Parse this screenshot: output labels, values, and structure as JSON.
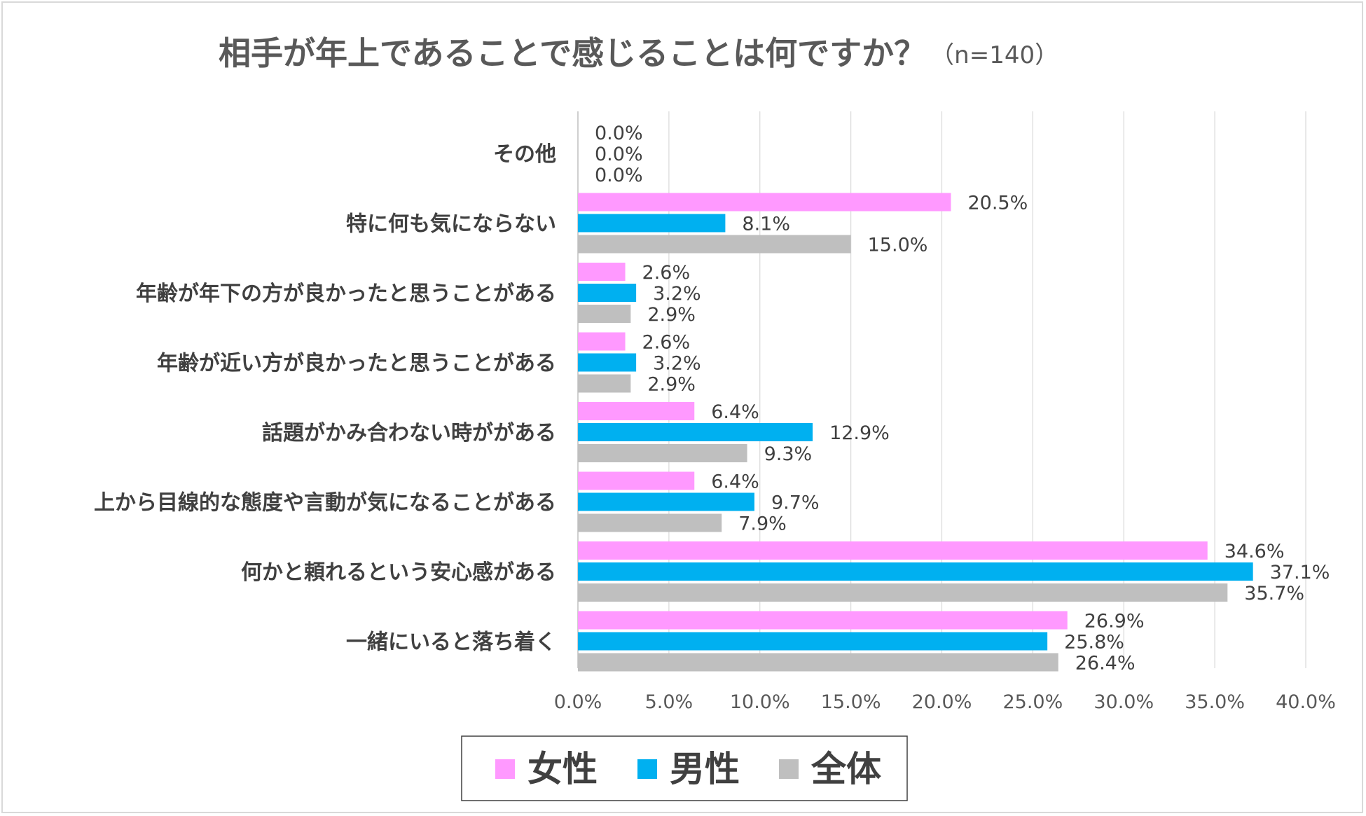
{
  "chart_data": {
    "type": "bar",
    "orientation": "horizontal",
    "title": "相手が年上であることで感じることは何ですか？",
    "subtitle": "（n=140）",
    "categories": [
      "その他",
      "特に何も気にならない",
      "年齢が年下の方が良かったと思うことがある",
      "年齢が近い方が良かったと思うことがある",
      "話題がかみ合わない時ががある",
      "上から目線的な態度や言動が気になることがある",
      "何かと頼れるという安心感がある",
      "一緒にいると落ち着く"
    ],
    "series": [
      {
        "name": "女性",
        "color": "#ff99ff",
        "values": [
          0.0,
          20.5,
          2.6,
          2.6,
          6.4,
          6.4,
          34.6,
          26.9
        ]
      },
      {
        "name": "男性",
        "color": "#00b0f0",
        "values": [
          0.0,
          8.1,
          3.2,
          3.2,
          12.9,
          9.7,
          37.1,
          25.8
        ]
      },
      {
        "name": "全体",
        "color": "#bfbfbf",
        "values": [
          0.0,
          15.0,
          2.9,
          2.9,
          9.3,
          7.9,
          35.7,
          26.4
        ]
      }
    ],
    "xlim": [
      0,
      40
    ],
    "xticks": [
      0,
      5,
      10,
      15,
      20,
      25,
      30,
      35,
      40
    ],
    "tick_labels": [
      "0.0%",
      "5.0%",
      "10.0%",
      "15.0%",
      "20.0%",
      "25.0%",
      "30.0%",
      "35.0%",
      "40.0%"
    ],
    "data_labels": [
      [
        "0.0%",
        "20.5%",
        "2.6%",
        "2.6%",
        "6.4%",
        "6.4%",
        "34.6%",
        "26.9%"
      ],
      [
        "0.0%",
        "8.1%",
        "3.2%",
        "3.2%",
        "12.9%",
        "9.7%",
        "37.1%",
        "25.8%"
      ],
      [
        "0.0%",
        "15.0%",
        "2.9%",
        "2.9%",
        "9.3%",
        "7.9%",
        "35.7%",
        "26.4%"
      ]
    ],
    "grid": true,
    "legend_position": "bottom"
  }
}
